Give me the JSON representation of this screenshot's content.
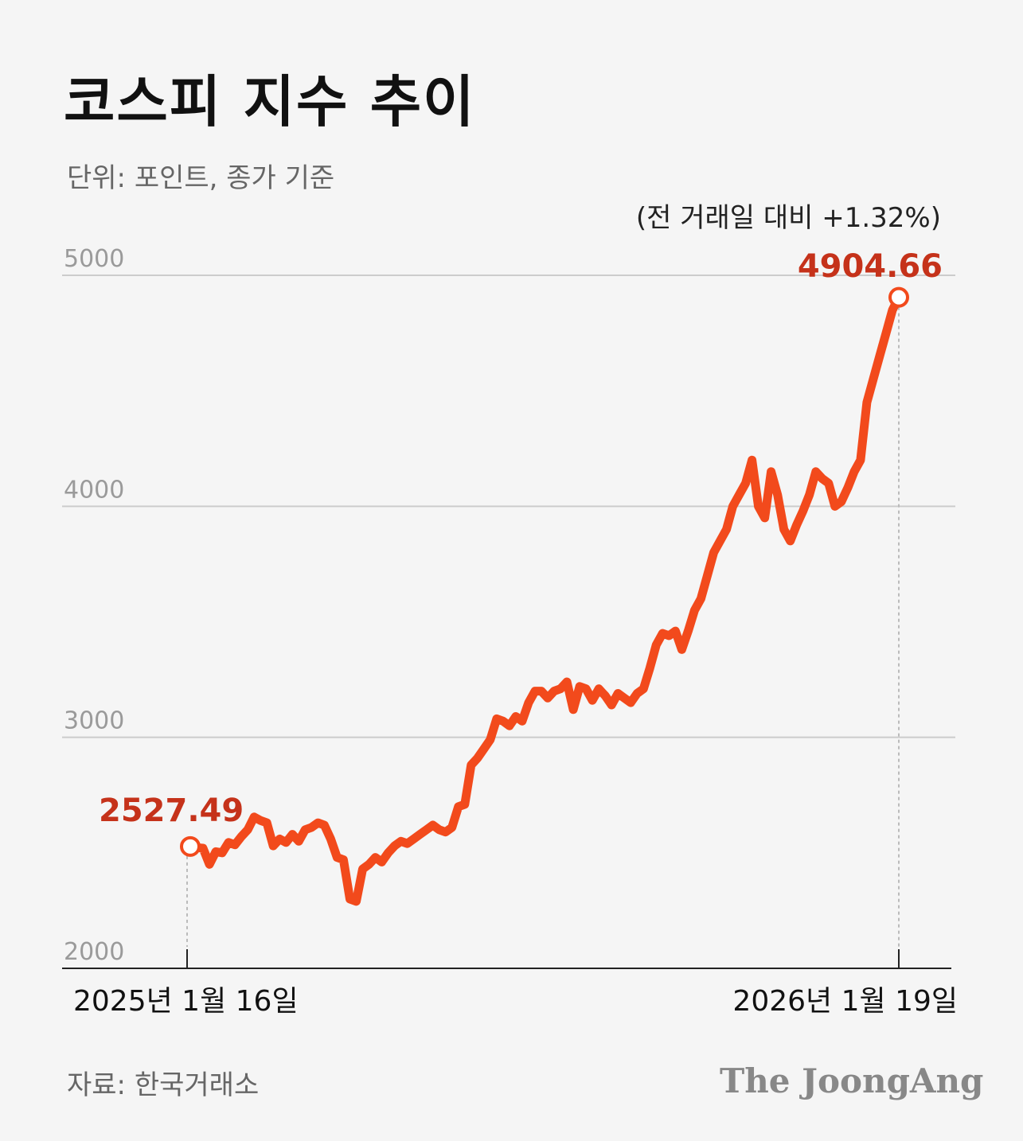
{
  "header": {
    "title": "코스피 지수 추이",
    "subtitle": "단위: 포인트, 종가 기준"
  },
  "footer": {
    "source": "자료: 한국거래소",
    "brand": "The JoongAng"
  },
  "colors": {
    "line": "#f24a1c",
    "value_label": "#c5321a",
    "grid": "#cccccc"
  },
  "chart_data": {
    "type": "line",
    "title": "코스피 지수 추이",
    "ylabel": "",
    "xlabel": "",
    "ylim": [
      2000,
      5000
    ],
    "yticks": [
      "2000",
      "3000",
      "4000",
      "5000"
    ],
    "grid": "horizontal",
    "x_labels": [
      "2025년 1월 16일",
      "2026년 1월 19일"
    ],
    "start": {
      "label": "2527.49",
      "value": 2527.49
    },
    "end": {
      "label": "4904.66",
      "value": 4904.66,
      "annotation": "(전 거래일 대비 +1.32%)"
    },
    "series": [
      {
        "values": [
          2527.49,
          2523,
          2520,
          2450,
          2505,
          2500,
          2545,
          2535,
          2570,
          2600,
          2655,
          2640,
          2630,
          2530,
          2560,
          2545,
          2580,
          2550,
          2600,
          2610,
          2630,
          2620,
          2560,
          2480,
          2470,
          2300,
          2290,
          2430,
          2450,
          2480,
          2460,
          2500,
          2530,
          2550,
          2540,
          2560,
          2580,
          2600,
          2620,
          2600,
          2590,
          2610,
          2700,
          2710,
          2880,
          2910,
          2950,
          2990,
          3080,
          3070,
          3050,
          3090,
          3070,
          3150,
          3200,
          3200,
          3170,
          3200,
          3210,
          3240,
          3120,
          3220,
          3210,
          3160,
          3210,
          3180,
          3140,
          3190,
          3170,
          3150,
          3190,
          3210,
          3300,
          3400,
          3450,
          3440,
          3460,
          3380,
          3460,
          3550,
          3600,
          3700,
          3800,
          3850,
          3900,
          4000,
          4050,
          4100,
          4200,
          4000,
          3950,
          4150,
          4050,
          3900,
          3850,
          3920,
          3980,
          4050,
          4150,
          4120,
          4100,
          4000,
          4020,
          4080,
          4150,
          4200,
          4450,
          4550,
          4650,
          4750,
          4850,
          4904.66
        ]
      }
    ]
  }
}
